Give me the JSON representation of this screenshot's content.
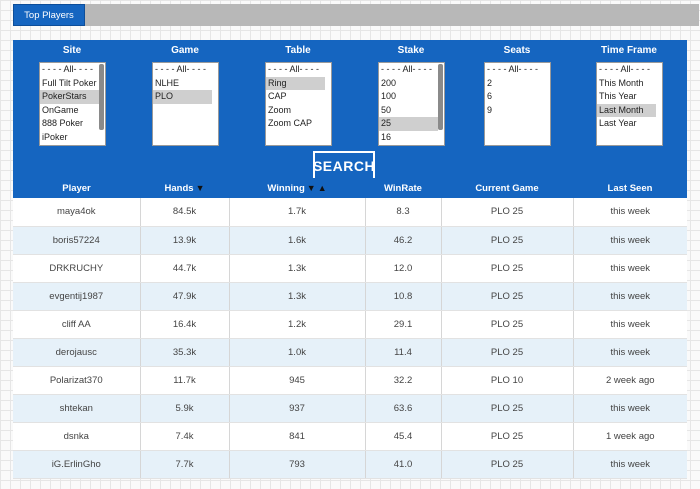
{
  "tab": {
    "label": "Top Players"
  },
  "filters": [
    {
      "label": "Site",
      "options": [
        "- - - - All- - - -",
        "Full Tilt Poker",
        "PokerStars",
        "OnGame",
        "888 Poker",
        "iPoker"
      ],
      "selected": [
        2
      ]
    },
    {
      "label": "Game",
      "options": [
        "- - - - All- - - -",
        "NLHE",
        "PLO"
      ],
      "selected": [
        2
      ]
    },
    {
      "label": "Table",
      "options": [
        "- - - - All- - - -",
        "Ring",
        "CAP",
        "Zoom",
        "Zoom CAP"
      ],
      "selected": [
        1
      ]
    },
    {
      "label": "Stake",
      "options": [
        "- - - - All- - - -",
        "200",
        "100",
        "50",
        "25",
        "16"
      ],
      "selected": [
        4
      ]
    },
    {
      "label": "Seats",
      "options": [
        "- - - - All- - - -",
        "2",
        "6",
        "9"
      ],
      "selected": []
    },
    {
      "label": "Time Frame",
      "options": [
        "- - - - All- - - -",
        "This Month",
        "This Year",
        "Last Month",
        "Last Year"
      ],
      "selected": [
        3
      ]
    }
  ],
  "search": {
    "label": "SEARCH"
  },
  "table": {
    "columns": [
      "Player",
      "Hands",
      "Winning",
      "WinRate",
      "Current Game",
      "Last Seen"
    ],
    "sort_glyphs": {
      "down": "▼",
      "up": "▲"
    },
    "rows": [
      [
        "maya4ok",
        "84.5k",
        "1.7k",
        "8.3",
        "PLO 25",
        "this week"
      ],
      [
        "boris57224",
        "13.9k",
        "1.6k",
        "46.2",
        "PLO 25",
        "this week"
      ],
      [
        "DRKRUCHY",
        "44.7k",
        "1.3k",
        "12.0",
        "PLO 25",
        "this week"
      ],
      [
        "evgentij1987",
        "47.9k",
        "1.3k",
        "10.8",
        "PLO 25",
        "this week"
      ],
      [
        "cliff AA",
        "16.4k",
        "1.2k",
        "29.1",
        "PLO 25",
        "this week"
      ],
      [
        "derojausc",
        "35.3k",
        "1.0k",
        "11.4",
        "PLO 25",
        "this week"
      ],
      [
        "Polarizat370",
        "11.7k",
        "945",
        "32.2",
        "PLO 10",
        "2 week ago"
      ],
      [
        "shtekan",
        "5.9k",
        "937",
        "63.6",
        "PLO 25",
        "this week"
      ],
      [
        "dsnka",
        "7.4k",
        "841",
        "45.4",
        "PLO 25",
        "1 week ago"
      ],
      [
        "iG.ErlinGho",
        "7.7k",
        "793",
        "41.0",
        "PLO 25",
        "this week"
      ]
    ]
  }
}
